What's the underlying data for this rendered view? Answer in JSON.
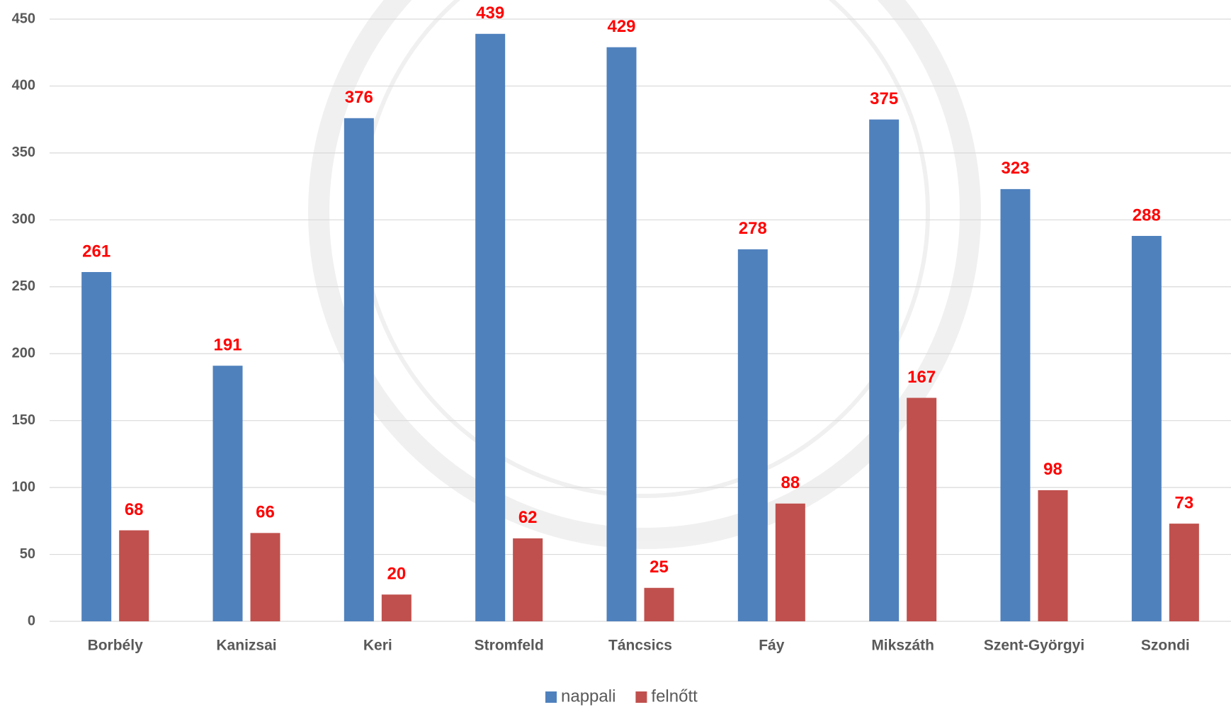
{
  "chart_data": {
    "type": "bar",
    "categories": [
      "Borbély",
      "Kanizsai",
      "Keri",
      "Stromfeld",
      "Táncsics",
      "Fáy",
      "Mikszáth",
      "Szent-Györgyi",
      "Szondi"
    ],
    "series": [
      {
        "name": "nappali",
        "color": "#4f81bd",
        "values": [
          261,
          191,
          376,
          439,
          429,
          278,
          375,
          323,
          288
        ]
      },
      {
        "name": "felnőtt",
        "color": "#c0504d",
        "values": [
          68,
          66,
          20,
          62,
          25,
          88,
          167,
          98,
          73
        ]
      }
    ],
    "ylim": [
      0,
      450
    ],
    "yticks": [
      0,
      50,
      100,
      150,
      200,
      250,
      300,
      350,
      400,
      450
    ],
    "grid": true,
    "legend": "bottom",
    "value_label_color": "#ff0000"
  }
}
